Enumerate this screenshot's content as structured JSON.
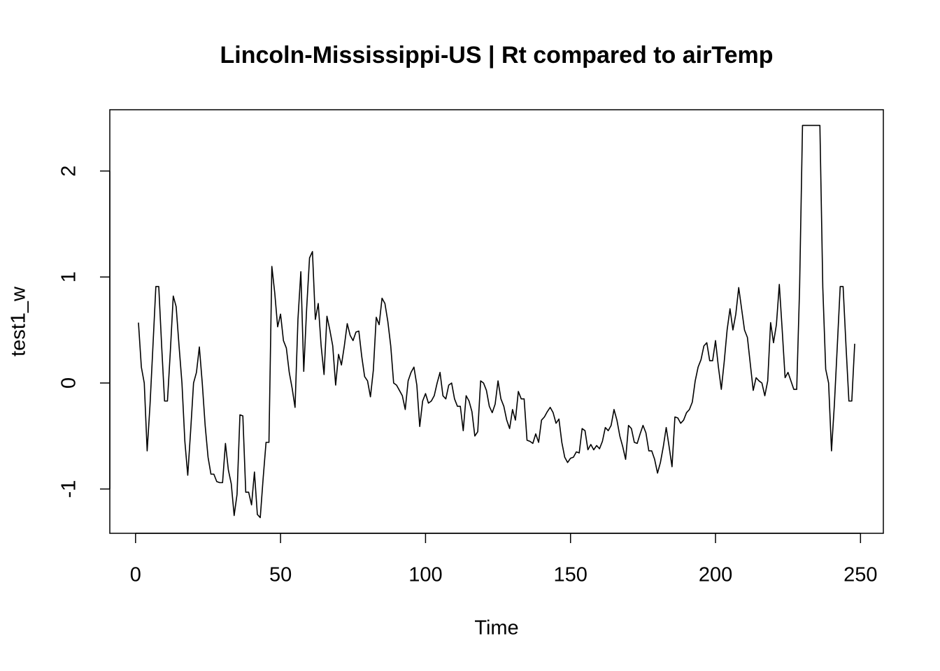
{
  "chart_data": {
    "type": "line",
    "title": "Lincoln-Mississippi-US | Rt compared to airTemp",
    "x_label": "Time",
    "y_label": "test1_w",
    "color": "#000000",
    "xlim": [
      -8.88,
      257.88
    ],
    "ylim": [
      -1.418,
      2.578
    ],
    "xticks": [
      0,
      50,
      100,
      150,
      200,
      250
    ],
    "yticks": [
      -1,
      0,
      1,
      2
    ],
    "x": [
      1,
      2,
      3,
      4,
      5,
      6,
      7,
      8,
      9,
      10,
      11,
      12,
      13,
      14,
      15,
      16,
      17,
      18,
      19,
      20,
      21,
      22,
      23,
      24,
      25,
      26,
      27,
      28,
      29,
      30,
      31,
      32,
      33,
      34,
      35,
      36,
      37,
      38,
      39,
      40,
      41,
      42,
      43,
      44,
      45,
      46,
      47,
      48,
      49,
      50,
      51,
      52,
      53,
      54,
      55,
      56,
      57,
      58,
      59,
      60,
      61,
      62,
      63,
      64,
      65,
      66,
      67,
      68,
      69,
      70,
      71,
      72,
      73,
      74,
      75,
      76,
      77,
      78,
      79,
      80,
      81,
      82,
      83,
      84,
      85,
      86,
      87,
      88,
      89,
      90,
      91,
      92,
      93,
      94,
      95,
      96,
      97,
      98,
      99,
      100,
      101,
      102,
      103,
      104,
      105,
      106,
      107,
      108,
      109,
      110,
      111,
      112,
      113,
      114,
      115,
      116,
      117,
      118,
      119,
      120,
      121,
      122,
      123,
      124,
      125,
      126,
      127,
      128,
      129,
      130,
      131,
      132,
      133,
      134,
      135,
      136,
      137,
      138,
      139,
      140,
      141,
      142,
      143,
      144,
      145,
      146,
      147,
      148,
      149,
      150,
      151,
      152,
      153,
      154,
      155,
      156,
      157,
      158,
      159,
      160,
      161,
      162,
      163,
      164,
      165,
      166,
      167,
      168,
      169,
      170,
      171,
      172,
      173,
      174,
      175,
      176,
      177,
      178,
      179,
      180,
      181,
      182,
      183,
      184,
      185,
      186,
      187,
      188,
      189,
      190,
      191,
      192,
      193,
      194,
      195,
      196,
      197,
      198,
      199,
      200,
      201,
      202,
      203,
      204,
      205,
      206,
      207,
      208,
      209,
      210,
      211,
      212,
      213,
      214,
      215,
      216,
      217,
      218,
      219,
      220,
      221,
      222,
      223,
      224,
      225,
      226,
      227,
      228,
      229,
      230,
      231,
      232,
      233,
      234,
      235,
      236,
      237,
      238,
      239,
      240,
      241,
      242,
      243,
      244,
      245,
      246,
      247,
      248
    ],
    "values": [
      0.57,
      0.15,
      0.0,
      -0.64,
      -0.2,
      0.35,
      0.91,
      0.91,
      0.35,
      -0.17,
      -0.17,
      0.3,
      0.82,
      0.72,
      0.35,
      0.0,
      -0.55,
      -0.87,
      -0.45,
      0.0,
      0.1,
      0.34,
      0.0,
      -0.4,
      -0.7,
      -0.86,
      -0.86,
      -0.93,
      -0.94,
      -0.94,
      -0.57,
      -0.82,
      -0.95,
      -1.25,
      -1.05,
      -0.3,
      -0.31,
      -1.03,
      -1.03,
      -1.15,
      -0.84,
      -1.24,
      -1.27,
      -0.9,
      -0.56,
      -0.56,
      1.1,
      0.85,
      0.53,
      0.65,
      0.4,
      0.33,
      0.1,
      -0.05,
      -0.23,
      0.6,
      1.05,
      0.11,
      0.7,
      1.18,
      1.24,
      0.6,
      0.75,
      0.35,
      0.08,
      0.63,
      0.5,
      0.35,
      -0.02,
      0.27,
      0.17,
      0.35,
      0.56,
      0.45,
      0.4,
      0.48,
      0.49,
      0.25,
      0.06,
      0.02,
      -0.13,
      0.12,
      0.62,
      0.55,
      0.8,
      0.75,
      0.58,
      0.35,
      0.0,
      -0.02,
      -0.07,
      -0.12,
      -0.25,
      0.02,
      0.1,
      0.15,
      -0.02,
      -0.41,
      -0.17,
      -0.1,
      -0.19,
      -0.17,
      -0.12,
      0.0,
      0.1,
      -0.12,
      -0.15,
      -0.02,
      0.0,
      -0.15,
      -0.22,
      -0.22,
      -0.45,
      -0.12,
      -0.17,
      -0.27,
      -0.5,
      -0.46,
      0.02,
      0.0,
      -0.07,
      -0.22,
      -0.28,
      -0.2,
      0.02,
      -0.15,
      -0.22,
      -0.35,
      -0.43,
      -0.25,
      -0.35,
      -0.08,
      -0.15,
      -0.15,
      -0.54,
      -0.55,
      -0.57,
      -0.48,
      -0.56,
      -0.35,
      -0.32,
      -0.27,
      -0.23,
      -0.28,
      -0.38,
      -0.34,
      -0.56,
      -0.7,
      -0.75,
      -0.71,
      -0.7,
      -0.65,
      -0.66,
      -0.43,
      -0.45,
      -0.63,
      -0.58,
      -0.63,
      -0.59,
      -0.62,
      -0.55,
      -0.42,
      -0.45,
      -0.4,
      -0.25,
      -0.35,
      -0.5,
      -0.6,
      -0.72,
      -0.4,
      -0.43,
      -0.56,
      -0.57,
      -0.48,
      -0.4,
      -0.47,
      -0.64,
      -0.64,
      -0.72,
      -0.85,
      -0.75,
      -0.6,
      -0.42,
      -0.6,
      -0.79,
      -0.32,
      -0.33,
      -0.38,
      -0.35,
      -0.28,
      -0.25,
      -0.18,
      0.02,
      0.15,
      0.22,
      0.35,
      0.38,
      0.21,
      0.21,
      0.4,
      0.15,
      -0.06,
      0.2,
      0.5,
      0.7,
      0.5,
      0.65,
      0.9,
      0.7,
      0.5,
      0.43,
      0.18,
      -0.07,
      0.05,
      0.02,
      0.0,
      -0.12,
      0.02,
      0.57,
      0.38,
      0.55,
      0.93,
      0.5,
      0.05,
      0.1,
      0.02,
      -0.06,
      -0.06,
      0.9,
      2.43,
      2.43,
      2.43,
      2.43,
      2.43,
      2.43,
      2.43,
      0.9,
      0.13,
      0.0,
      -0.64,
      -0.2,
      0.35,
      0.91,
      0.91,
      0.35,
      -0.17,
      -0.17,
      0.37
    ]
  }
}
